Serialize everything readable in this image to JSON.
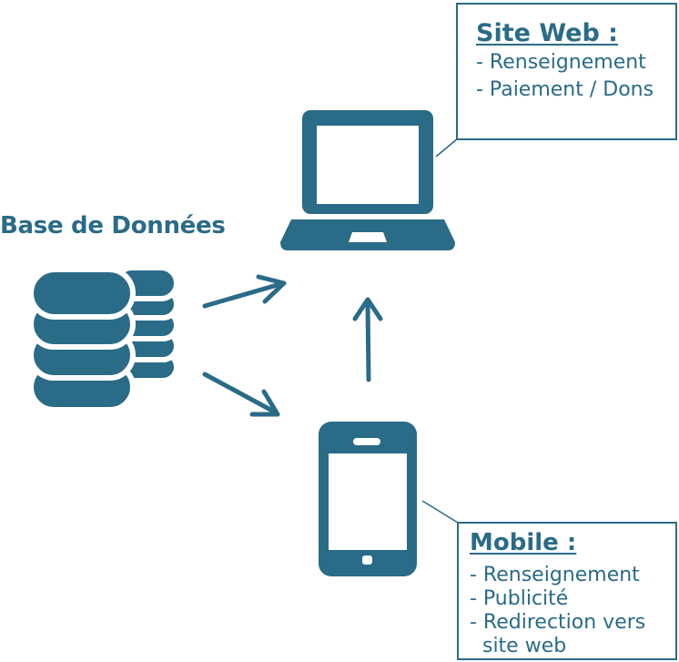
{
  "colors": {
    "primary": "#2a6b87",
    "background": "#ffffff"
  },
  "icons": {
    "database": "database-icon",
    "laptop": "laptop-icon",
    "mobile": "smartphone-icon"
  },
  "database": {
    "label": "Base de Données"
  },
  "website": {
    "title": "Site Web :",
    "items": [
      "- Renseignement",
      "- Paiement / Dons"
    ]
  },
  "mobile": {
    "title": "Mobile :",
    "items": [
      "- Renseignement",
      "- Publicité",
      "- Redirection vers",
      "  site web"
    ]
  }
}
